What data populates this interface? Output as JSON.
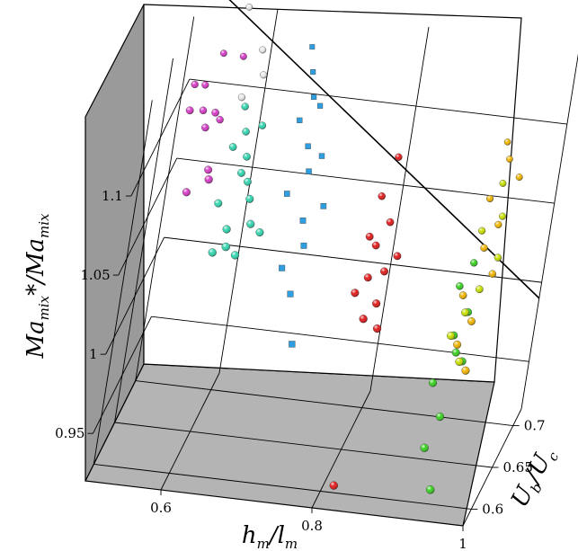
{
  "chart_data": {
    "type": "scatter",
    "dimensions": 3,
    "title": "",
    "axes": {
      "x": {
        "label_main": "h",
        "label_sub": "m",
        "label_sep": "/",
        "label_main2": "l",
        "label_sub2": "m",
        "ticks": [
          "0.6",
          "0.8",
          "1"
        ],
        "range": [
          0.5,
          1.0
        ]
      },
      "y": {
        "label_main": "U",
        "label_sub": "b",
        "label_sep": "/",
        "label_main2": "U",
        "label_sub2": "c",
        "ticks": [
          "0.6",
          "0.65",
          "0.7"
        ],
        "range": [
          0.58,
          0.72
        ]
      },
      "z": {
        "label_main": "Ma",
        "label_sub": "mix",
        "label_star": "*",
        "label_sep": "/",
        "label_main2": "Ma",
        "label_sub2": "mix",
        "ticks": [
          "0.95",
          "1",
          "1.05",
          "1.1"
        ],
        "range": [
          0.92,
          1.15
        ]
      }
    },
    "grid": true,
    "legend": "none",
    "trend_line": {
      "color": "#000000"
    },
    "series": [
      {
        "color": "#d63cc6",
        "marker": "sphere",
        "points": [
          [
            0.53,
            0.66,
            1.13
          ],
          [
            0.54,
            0.67,
            1.125
          ],
          [
            0.55,
            0.65,
            1.12
          ],
          [
            0.56,
            0.64,
            1.115
          ],
          [
            0.54,
            0.63,
            1.13
          ],
          [
            0.57,
            0.66,
            1.11
          ],
          [
            0.58,
            0.62,
            1.1
          ],
          [
            0.56,
            0.61,
            1.09
          ],
          [
            0.59,
            0.6,
            1.105
          ],
          [
            0.58,
            0.68,
            1.14
          ],
          [
            0.55,
            0.69,
            1.135
          ],
          [
            0.57,
            0.64,
            1.125
          ]
        ]
      },
      {
        "color": "#e8e8e8",
        "marker": "sphere",
        "points": [
          [
            0.57,
            0.7,
            1.16
          ],
          [
            0.6,
            0.69,
            1.14
          ],
          [
            0.61,
            0.68,
            1.13
          ],
          [
            0.59,
            0.67,
            1.12
          ]
        ]
      },
      {
        "color": "#33d6b0",
        "marker": "sphere",
        "points": [
          [
            0.6,
            0.66,
            1.12
          ],
          [
            0.61,
            0.65,
            1.11
          ],
          [
            0.62,
            0.64,
            1.1
          ],
          [
            0.63,
            0.63,
            1.09
          ],
          [
            0.6,
            0.62,
            1.08
          ],
          [
            0.62,
            0.61,
            1.07
          ],
          [
            0.64,
            0.62,
            1.085
          ],
          [
            0.61,
            0.6,
            1.06
          ],
          [
            0.63,
            0.59,
            1.07
          ],
          [
            0.65,
            0.61,
            1.075
          ],
          [
            0.62,
            0.63,
            1.095
          ],
          [
            0.64,
            0.6,
            1.06
          ],
          [
            0.6,
            0.64,
            1.105
          ],
          [
            0.63,
            0.65,
            1.115
          ],
          [
            0.66,
            0.62,
            1.065
          ]
        ]
      },
      {
        "color": "#2f9ee0",
        "marker": "cube",
        "points": [
          [
            0.66,
            0.7,
            1.14
          ],
          [
            0.67,
            0.69,
            1.13
          ],
          [
            0.68,
            0.68,
            1.12
          ],
          [
            0.67,
            0.67,
            1.11
          ],
          [
            0.69,
            0.66,
            1.1
          ],
          [
            0.7,
            0.65,
            1.09
          ],
          [
            0.68,
            0.64,
            1.08
          ],
          [
            0.71,
            0.63,
            1.07
          ],
          [
            0.72,
            0.62,
            1.06
          ],
          [
            0.7,
            0.61,
            1.05
          ],
          [
            0.73,
            0.64,
            1.075
          ],
          [
            0.69,
            0.68,
            1.115
          ],
          [
            0.72,
            0.6,
            1.04
          ],
          [
            0.74,
            0.58,
            1.02
          ],
          [
            0.71,
            0.66,
            1.095
          ]
        ]
      },
      {
        "color": "#e01b1b",
        "marker": "sphere",
        "points": [
          [
            0.81,
            0.66,
            1.1
          ],
          [
            0.8,
            0.65,
            1.08
          ],
          [
            0.82,
            0.64,
            1.07
          ],
          [
            0.81,
            0.63,
            1.06
          ],
          [
            0.83,
            0.62,
            1.05
          ],
          [
            0.8,
            0.61,
            1.04
          ],
          [
            0.82,
            0.6,
            1.03
          ],
          [
            0.84,
            0.63,
            1.055
          ],
          [
            0.81,
            0.62,
            1.045
          ],
          [
            0.83,
            0.61,
            1.035
          ],
          [
            0.82,
            0.59,
            0.93
          ],
          [
            0.8,
            0.63,
            1.065
          ],
          [
            0.84,
            0.6,
            1.025
          ]
        ]
      },
      {
        "color": "#f0b400",
        "marker": "sphere",
        "points": [
          [
            0.93,
            0.71,
            1.09
          ],
          [
            0.94,
            0.7,
            1.085
          ],
          [
            0.96,
            0.69,
            1.08
          ],
          [
            0.93,
            0.68,
            1.07
          ],
          [
            0.95,
            0.67,
            1.06
          ],
          [
            0.94,
            0.66,
            1.05
          ],
          [
            0.96,
            0.65,
            1.04
          ],
          [
            0.93,
            0.64,
            1.03
          ],
          [
            0.95,
            0.63,
            1.02
          ],
          [
            0.94,
            0.62,
            1.01
          ],
          [
            0.96,
            0.61,
            1.0
          ]
        ]
      },
      {
        "color": "#c8e000",
        "marker": "sphere",
        "points": [
          [
            0.94,
            0.69,
            1.075
          ],
          [
            0.95,
            0.68,
            1.06
          ],
          [
            0.93,
            0.67,
            1.055
          ],
          [
            0.96,
            0.66,
            1.045
          ],
          [
            0.95,
            0.64,
            1.035
          ],
          [
            0.94,
            0.63,
            1.025
          ],
          [
            0.93,
            0.62,
            1.015
          ],
          [
            0.95,
            0.61,
            1.005
          ]
        ]
      },
      {
        "color": "#38d020",
        "marker": "sphere",
        "points": [
          [
            0.93,
            0.66,
            1.04
          ],
          [
            0.92,
            0.65,
            1.03
          ],
          [
            0.94,
            0.64,
            1.02
          ],
          [
            0.93,
            0.63,
            1.01
          ],
          [
            0.95,
            0.62,
            1.0
          ],
          [
            0.92,
            0.61,
            0.99
          ],
          [
            0.94,
            0.6,
            0.975
          ],
          [
            0.93,
            0.59,
            0.96
          ],
          [
            0.95,
            0.58,
            0.94
          ],
          [
            0.94,
            0.62,
            1.005
          ]
        ]
      }
    ]
  }
}
